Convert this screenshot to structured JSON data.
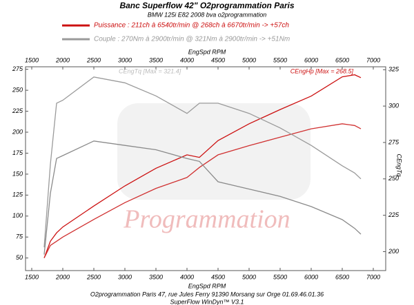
{
  "chart_data": {
    "type": "line",
    "title": "Banc Superflow 42\" O2programmation Paris",
    "subtitle": "BMW 125i E82 2008 bva o2programmation",
    "x_label": "EngSpd RPM",
    "y2_label": "CEngTq",
    "annotations": [
      "CEngHp [Max = 268.5]",
      "CEngTq [Max = 321.4]"
    ],
    "watermark": "Programmation",
    "footer": [
      "O2programmation Paris 47, rue Jules Ferry 91390 Morsang sur Orge 01.69.46.01.36",
      "SuperFlow WinDyn™ V3.1"
    ],
    "x": [
      1700,
      1800,
      1900,
      2000,
      2500,
      3000,
      3500,
      4000,
      4200,
      4500,
      5000,
      5500,
      6000,
      6500,
      6700,
      6800
    ],
    "series": [
      {
        "name": "Puissance : 211ch à 6540tr/min @ 268ch à 6670tr/min  -> +57ch",
        "color": "#cc1010",
        "values": [
          50,
          70,
          80,
          87,
          112,
          136,
          157,
          173,
          170,
          190,
          210,
          227,
          243,
          266,
          268.5,
          265
        ]
      },
      {
        "color": "#d03030",
        "values": [
          50,
          65,
          70,
          75,
          96,
          116,
          133,
          146,
          158,
          173,
          184,
          194,
          204,
          210,
          208,
          204
        ]
      },
      {
        "name": "Couple :  270Nm à 2900tr/min @ 321Nm à 2900tr/min -> +51Nm",
        "color": "#9a9a9a",
        "axis": "y2",
        "values": [
          203,
          260,
          302,
          304,
          320,
          316,
          307,
          295,
          302,
          302,
          295,
          285,
          273,
          259,
          254,
          250
        ]
      },
      {
        "color": "#8a8a8a",
        "axis": "y2",
        "values": [
          198,
          240,
          264,
          266,
          276,
          273,
          270,
          264,
          262,
          248,
          243,
          238,
          231,
          222,
          216,
          212
        ]
      }
    ],
    "xlim": [
      1400,
      7200
    ],
    "xticks": [
      1500,
      2000,
      2500,
      3000,
      3500,
      4000,
      4500,
      5000,
      5500,
      6000,
      6500,
      7000
    ],
    "ylim": [
      35,
      278
    ],
    "yticks": [
      50,
      75,
      100,
      125,
      150,
      175,
      200,
      225,
      250,
      275
    ],
    "y2lim": [
      187,
      327
    ],
    "y2ticks": [
      200,
      225,
      250,
      275,
      300,
      325
    ]
  }
}
